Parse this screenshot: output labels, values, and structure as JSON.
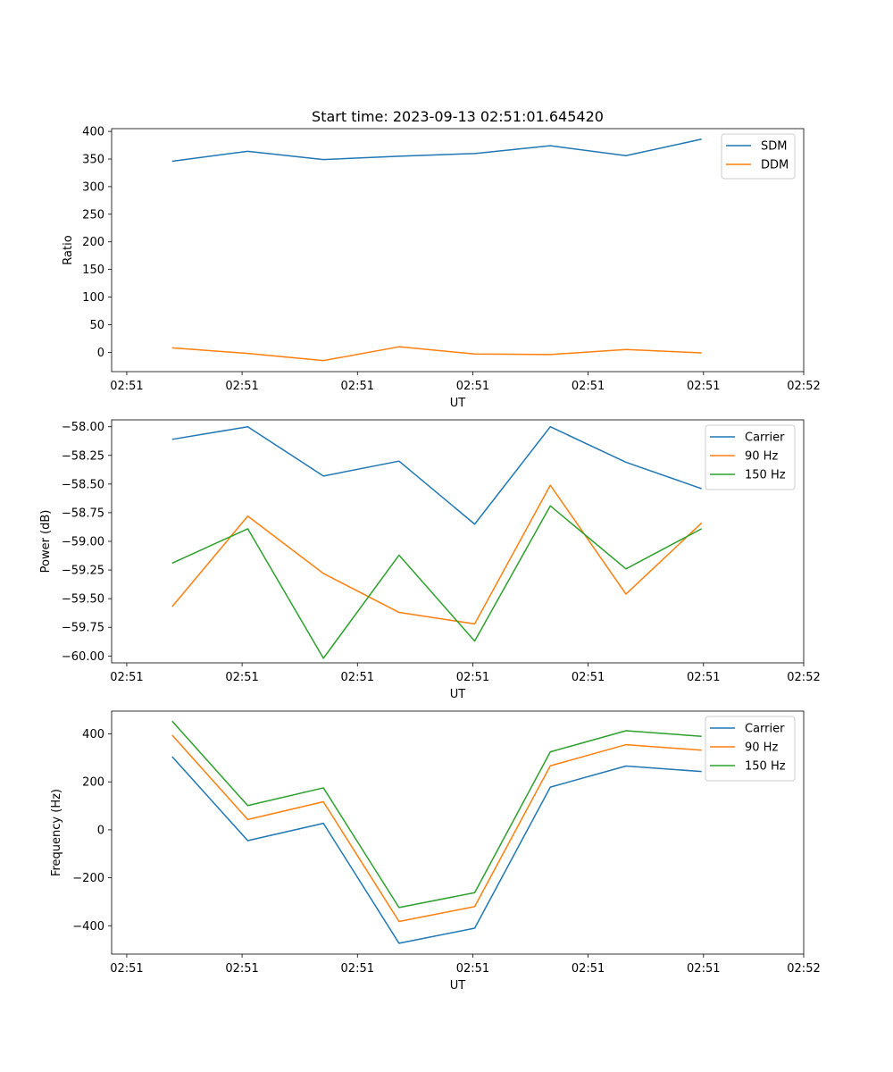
{
  "figure": {
    "title": "Start time: 2023-09-13 02:51:01.645420"
  },
  "chart_data": [
    {
      "type": "line",
      "title": "Start time: 2023-09-13 02:51:01.645420",
      "xlabel": "UT",
      "ylabel": "Ratio",
      "x": [
        1,
        2,
        3,
        4,
        5,
        6,
        7,
        8
      ],
      "xlim": [
        0.2,
        9.35
      ],
      "ylim": [
        -35,
        405
      ],
      "xticks": [
        0.4,
        1.925,
        3.45,
        4.975,
        6.5,
        8.025,
        9.35
      ],
      "xtick_labels": [
        "02:51",
        "02:51",
        "02:51",
        "02:51",
        "02:51",
        "02:51",
        "02:52"
      ],
      "yticks": [
        0,
        50,
        100,
        150,
        200,
        250,
        300,
        350,
        400
      ],
      "ytick_labels": [
        "0",
        "50",
        "100",
        "150",
        "200",
        "250",
        "300",
        "350",
        "400"
      ],
      "legend_position": "top-right",
      "series": [
        {
          "name": "SDM",
          "color": "#1f77b4",
          "values": [
            346,
            364,
            349,
            355,
            360,
            374,
            356,
            386
          ]
        },
        {
          "name": "DDM",
          "color": "#ff7f0e",
          "values": [
            8,
            -2,
            -15,
            10,
            -3,
            -4,
            5,
            -1
          ]
        }
      ]
    },
    {
      "type": "line",
      "title": "",
      "xlabel": "UT",
      "ylabel": "Power (dB)",
      "x": [
        1,
        2,
        3,
        4,
        5,
        6,
        7,
        8
      ],
      "xlim": [
        0.2,
        9.35
      ],
      "ylim": [
        -60.06,
        -57.94
      ],
      "xticks": [
        0.4,
        1.925,
        3.45,
        4.975,
        6.5,
        8.025,
        9.35
      ],
      "xtick_labels": [
        "02:51",
        "02:51",
        "02:51",
        "02:51",
        "02:51",
        "02:51",
        "02:52"
      ],
      "yticks": [
        -58.0,
        -58.25,
        -58.5,
        -58.75,
        -59.0,
        -59.25,
        -59.5,
        -59.75,
        -60.0
      ],
      "ytick_labels": [
        "−58.00",
        "−58.25",
        "−58.50",
        "−58.75",
        "−59.00",
        "−59.25",
        "−59.50",
        "−59.75",
        "−60.00"
      ],
      "legend_position": "top-right",
      "series": [
        {
          "name": "Carrier",
          "color": "#1f77b4",
          "values": [
            -58.11,
            -58.0,
            -58.43,
            -58.3,
            -58.85,
            -58.0,
            -58.31,
            -58.54
          ]
        },
        {
          "name": "90 Hz",
          "color": "#ff7f0e",
          "values": [
            -59.57,
            -58.78,
            -59.28,
            -59.62,
            -59.72,
            -58.51,
            -59.46,
            -58.84
          ]
        },
        {
          "name": "150 Hz",
          "color": "#2ca02c",
          "values": [
            -59.19,
            -58.89,
            -60.02,
            -59.12,
            -59.87,
            -58.69,
            -59.24,
            -58.89
          ]
        }
      ]
    },
    {
      "type": "line",
      "title": "",
      "xlabel": "UT",
      "ylabel": "Frequency (Hz)",
      "x": [
        1,
        2,
        3,
        4,
        5,
        6,
        7,
        8
      ],
      "xlim": [
        0.2,
        9.35
      ],
      "ylim": [
        -518,
        495
      ],
      "xticks": [
        0.4,
        1.925,
        3.45,
        4.975,
        6.5,
        8.025,
        9.35
      ],
      "xtick_labels": [
        "02:51",
        "02:51",
        "02:51",
        "02:51",
        "02:51",
        "02:51",
        "02:52"
      ],
      "yticks": [
        -400,
        -200,
        0,
        200,
        400
      ],
      "ytick_labels": [
        "−400",
        "−200",
        "0",
        "200",
        "400"
      ],
      "legend_position": "top-right",
      "series": [
        {
          "name": "Carrier",
          "color": "#1f77b4",
          "values": [
            305,
            -45,
            27,
            -473,
            -410,
            178,
            266,
            243
          ]
        },
        {
          "name": "90 Hz",
          "color": "#ff7f0e",
          "values": [
            395,
            43,
            117,
            -382,
            -320,
            267,
            355,
            332
          ]
        },
        {
          "name": "150 Hz",
          "color": "#2ca02c",
          "values": [
            453,
            101,
            175,
            -324,
            -262,
            325,
            413,
            390
          ]
        }
      ]
    }
  ]
}
